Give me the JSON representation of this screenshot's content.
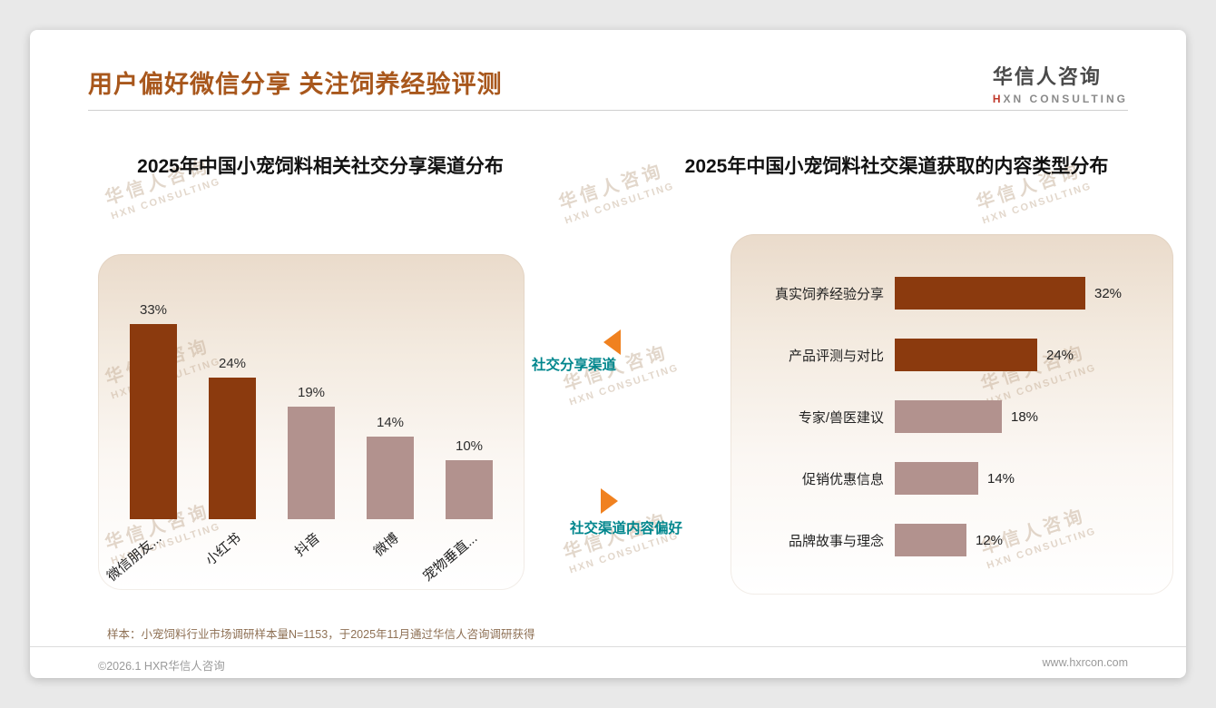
{
  "page": {
    "title": "用户偏好微信分享 关注饲养经验评测",
    "logo_cn": "华信人咨询",
    "logo_en": "HXN CONSULTING",
    "watermark_cn": "华信人咨询",
    "watermark_en": "HXN CONSULTING",
    "sample_note": "样本：小宠饲料行业市场调研样本量N=1153，于2025年11月通过华信人咨询调研获得",
    "footer_left": "©2026.1 HXR华信人咨询",
    "footer_right": "www.hxrcon.com"
  },
  "annotations": {
    "left_pointer_label": "社交分享渠道",
    "right_pointer_label": "社交渠道内容偏好"
  },
  "colors": {
    "title": "#A8571C",
    "bar_dark": "#8B3A0E",
    "bar_light": "#B2928E",
    "teal_label": "#00868D",
    "orange_triangle": "#F0811F"
  },
  "chart_data": [
    {
      "type": "bar",
      "orientation": "vertical",
      "title": "2025年中国小宠饲料相关社交分享渠道分布",
      "categories": [
        "微信朋友...",
        "小红书",
        "抖音",
        "微博",
        "宠物垂直..."
      ],
      "values": [
        33,
        24,
        19,
        14,
        10
      ],
      "unit": "%",
      "bar_colors": [
        "dark",
        "dark",
        "light",
        "light",
        "light"
      ],
      "ylim": [
        0,
        35
      ],
      "grid": false,
      "legend": false
    },
    {
      "type": "bar",
      "orientation": "horizontal",
      "title": "2025年中国小宠饲料社交渠道获取的内容类型分布",
      "categories": [
        "真实饲养经验分享",
        "产品评测与对比",
        "专家/兽医建议",
        "促销优惠信息",
        "品牌故事与理念"
      ],
      "values": [
        32,
        24,
        18,
        14,
        12
      ],
      "unit": "%",
      "bar_colors": [
        "dark",
        "dark",
        "light",
        "light",
        "light"
      ],
      "xlim": [
        0,
        35
      ],
      "grid": false,
      "legend": false
    }
  ]
}
